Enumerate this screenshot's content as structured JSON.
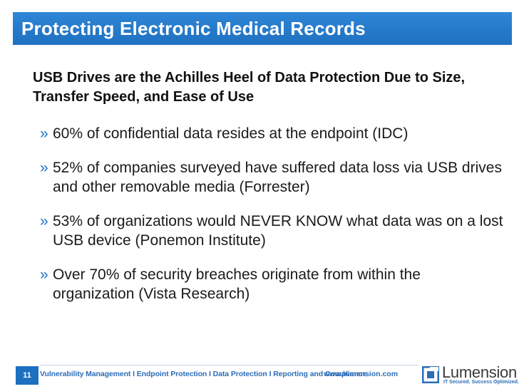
{
  "title": "Protecting Electronic Medical Records",
  "subtitle": "USB Drives are the Achilles Heel of Data Protection Due to Size, Transfer Speed, and Ease of Use",
  "bullet_marker": "»",
  "bullets": [
    "60% of confidential data resides at the endpoint (IDC)",
    "52% of companies surveyed have suffered data loss via USB drives and other removable media (Forrester)",
    "53% of organizations would NEVER KNOW what data was on a lost USB device (Ponemon Institute)",
    "Over 70% of security breaches originate from within the organization (Vista Research)"
  ],
  "footer": {
    "page_number": "11",
    "tagline": "Vulnerability Management I Endpoint Protection I Data Protection I Reporting and Compliance",
    "url": "www.lumension.com",
    "logo_name": "Lumension",
    "logo_slogan": "IT Secured. Success Optimized.",
    "logo_icon": "lumension-logo-icon"
  },
  "colors": {
    "title_bar": "#1f70c0",
    "title_text": "#ffffff",
    "accent": "#1a72c8",
    "footer_text": "#2c6db8"
  }
}
